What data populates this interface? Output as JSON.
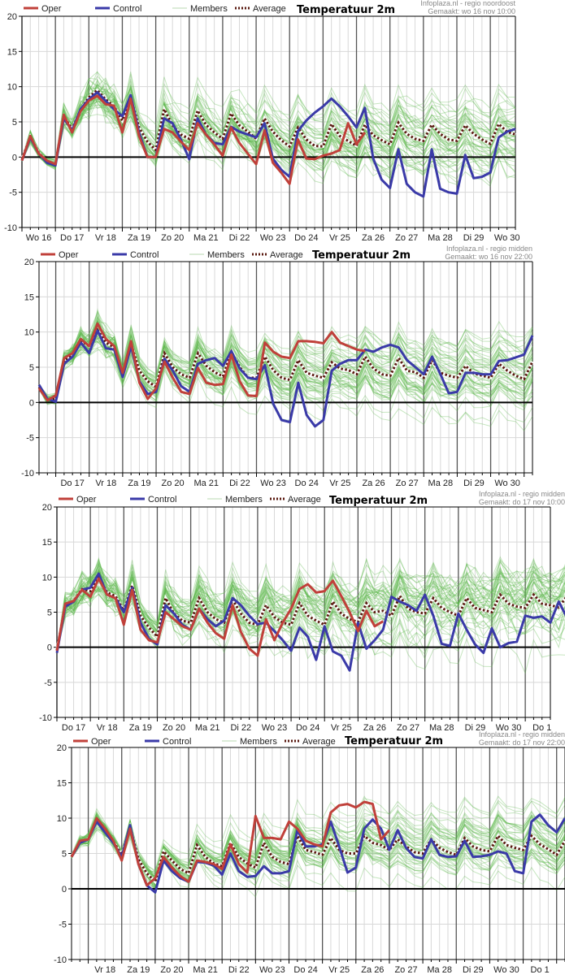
{
  "legend": {
    "oper": "Oper",
    "control": "Control",
    "members": "Members",
    "average": "Average"
  },
  "colors": {
    "oper": "#c0403a",
    "control": "#3a3aa8",
    "members": "#5cb84a",
    "average": "#5a1a10",
    "zero_line": "#000000",
    "grid_major": "#555555",
    "grid_minor": "#d8d8d8"
  },
  "chart_data": [
    {
      "type": "line",
      "title": "Temperatuur 2m",
      "credit_line1": "Infoplaza.nl - regio noordoost",
      "credit_line2": "Gemaakt: wo 16 nov 10:00",
      "ylim": [
        -10,
        20
      ],
      "yticks": [
        "20",
        "15",
        "10",
        "5",
        "0",
        "-5",
        "-10"
      ],
      "ytick_values": [
        20,
        15,
        10,
        5,
        0,
        -5,
        -10
      ],
      "xlabels": [
        "Wo 16",
        "Do 17",
        "Vr 18",
        "Za 19",
        "Zo 20",
        "Ma 21",
        "Di 22",
        "Wo 23",
        "Do 24",
        "Vr 25",
        "Za 26",
        "Zo 27",
        "Ma 28",
        "Di 29",
        "Wo 30"
      ],
      "steps_per_day": 4,
      "start_offset_steps": 0,
      "total_steps": 59,
      "series": [
        {
          "name": "Oper",
          "values": [
            -0.5,
            3,
            0.5,
            -0.5,
            -1,
            6,
            3.5,
            6.5,
            8,
            8.7,
            7.5,
            7.3,
            3.5,
            8.3,
            3,
            0,
            0,
            4,
            3.5,
            2.2,
            1,
            4.8,
            3.2,
            1.8,
            0.2,
            4.2,
            2,
            0.5,
            -1,
            3.8,
            -0.8,
            -2.2,
            -3.8,
            2.5,
            -0.2,
            -0.3,
            0.2,
            0.5,
            1,
            4.8,
            1.8,
            3.5
          ]
        },
        {
          "name": "Control",
          "values": [
            -0.5,
            2.8,
            0.5,
            -0.8,
            -1.2,
            5.5,
            3.8,
            6.8,
            8.2,
            9.2,
            8,
            6.8,
            5.8,
            8.8,
            3.5,
            0,
            0,
            5.5,
            4.8,
            2.5,
            -0.3,
            5.5,
            3.2,
            2,
            1.8,
            4.3,
            3.6,
            3.2,
            2.8,
            4.8,
            -0.2,
            -1.8,
            -2.8,
            3.7,
            5.2,
            6.3,
            7.2,
            8.3,
            7.2,
            5.8,
            4.2,
            7,
            -0.2,
            -3.2,
            -4.4,
            1.1,
            -3.8,
            -5,
            -5.6,
            1.1,
            -4.5,
            -5,
            -5.2,
            0.3,
            -3,
            -2.8,
            -2.2,
            2.8,
            3.6,
            4
          ]
        },
        {
          "name": "Average",
          "values": [
            -0.3,
            2.9,
            0.6,
            -0.6,
            -1,
            5.8,
            4,
            6.7,
            8.5,
            9.5,
            8.2,
            7.2,
            5.2,
            8.5,
            4.2,
            2.2,
            1,
            6.8,
            4.5,
            3.2,
            2.6,
            6.6,
            4.6,
            3.5,
            2.6,
            6.2,
            4.5,
            3.6,
            2.6,
            5.5,
            3.6,
            2.4,
            1.5,
            4.2,
            2.5,
            1.6,
            1.5,
            4.7,
            3,
            2.3,
            1.6,
            4.6,
            3.1,
            2.4,
            1.8,
            4.9,
            3.3,
            2.6,
            2.3,
            4.6,
            3.3,
            2.5,
            2.3,
            4.5,
            3.3,
            2.5,
            1.9,
            4.7,
            3.6,
            3.2
          ]
        }
      ],
      "members_count": 50,
      "members_spread_growth": 0.75
    },
    {
      "type": "line",
      "title": "Temperatuur 2m",
      "credit_line1": "Infoplaza.nl - regio midden",
      "credit_line2": "Gemaakt: wo 16 nov 22:00",
      "ylim": [
        -10,
        20
      ],
      "yticks": [
        "20",
        "15",
        "10",
        "5",
        "0",
        "-5",
        "-10"
      ],
      "ytick_values": [
        20,
        15,
        10,
        5,
        0,
        -5,
        -10
      ],
      "xlabels": [
        "Do 17",
        "Vr 18",
        "Za 19",
        "Zo 20",
        "Ma 21",
        "Di 22",
        "Wo 23",
        "Do 24",
        "Vr 25",
        "Za 26",
        "Zo 27",
        "Ma 28",
        "Di 29",
        "Wo 30"
      ],
      "steps_per_day": 4,
      "start_offset_steps": 2,
      "total_steps": 59,
      "series": [
        {
          "name": "Oper",
          "values": [
            2,
            0.3,
            1,
            6.3,
            7,
            9,
            8,
            11.2,
            9,
            8,
            4.2,
            8.7,
            2.8,
            0.5,
            2,
            5.8,
            3.5,
            1.5,
            1.2,
            4.9,
            2.8,
            2.5,
            2.6,
            6.8,
            3,
            1,
            0.9,
            8.5,
            7.2,
            6.5,
            6.3,
            8.7,
            8.7,
            8.6,
            8.4,
            10,
            8.5,
            8,
            7.5,
            7.3
          ]
        },
        {
          "name": "Control",
          "values": [
            2.5,
            0.5,
            0.1,
            5.5,
            6.5,
            8.5,
            7,
            10.2,
            7.7,
            7.5,
            3.6,
            8,
            3,
            1.2,
            1.5,
            6.2,
            4.5,
            2.3,
            1.5,
            5.5,
            6,
            6.3,
            5.2,
            7.3,
            4.8,
            3.5,
            3.3,
            5.3,
            -0.2,
            -2.5,
            -2.8,
            2.8,
            -1.8,
            -3.4,
            -2.5,
            4.5,
            5.5,
            6,
            6,
            7.5,
            7.2,
            7.8,
            8.2,
            7.8,
            6,
            5,
            4,
            6.5,
            4,
            1.3,
            1.5,
            4.2,
            4.2,
            4,
            4,
            5.9,
            6,
            6.4,
            6.8,
            9.5
          ]
        },
        {
          "name": "Average",
          "values": [
            2.2,
            0.4,
            0.5,
            6,
            6.8,
            8.8,
            8,
            10.3,
            8.5,
            7.8,
            4,
            8.3,
            4.5,
            3,
            2.2,
            7,
            5,
            4,
            3.5,
            7,
            5.2,
            4.3,
            3.7,
            7.2,
            5,
            3.5,
            3.5,
            6.5,
            4.6,
            3.5,
            3.2,
            6,
            4.2,
            3.8,
            3.5,
            5.7,
            4.8,
            4.6,
            4,
            6.5,
            4.8,
            4,
            3.8,
            6.3,
            4.5,
            4.3,
            3.5,
            6,
            4.2,
            3.8,
            3.5,
            5.2,
            4.1,
            3.8,
            3.5,
            5.5,
            4.5,
            3.8,
            3.3,
            5.8
          ]
        }
      ],
      "members_count": 50,
      "members_spread_growth": 0.7
    },
    {
      "type": "line",
      "title": "Temperatuur 2m",
      "credit_line1": "Infoplaza.nl - regio midden",
      "credit_line2": "Gemaakt: do 17 nov 10:00",
      "ylim": [
        -10,
        20
      ],
      "yticks": [
        "20",
        "15",
        "10",
        "5",
        "0",
        "-5",
        "-10"
      ],
      "ytick_values": [
        20,
        15,
        10,
        5,
        0,
        -5,
        -10
      ],
      "xlabels": [
        "Do 17",
        "Vr 18",
        "Za 19",
        "Zo 20",
        "Ma 21",
        "Di 22",
        "Wo 23",
        "Do 24",
        "Vr 25",
        "Za 26",
        "Zo 27",
        "Ma 28",
        "Di 29",
        "Wo 30",
        "Do 1"
      ],
      "steps_per_day": 4,
      "start_offset_steps": 0,
      "total_steps": 59,
      "series": [
        {
          "name": "Oper",
          "values": [
            -0.5,
            6.2,
            6.6,
            8.2,
            7.2,
            9.8,
            7.5,
            7,
            3.2,
            8.2,
            2.5,
            1,
            0.7,
            5,
            4,
            3,
            2.5,
            5.5,
            3.5,
            2,
            1.2,
            6,
            2.2,
            -0.2,
            -1.2,
            4,
            1,
            3.5,
            5.5,
            8.3,
            9,
            7.8,
            8,
            9.5,
            7.3,
            5,
            2.3,
            5.2,
            3,
            3.7
          ]
        },
        {
          "name": "Control",
          "values": [
            -0.8,
            5.8,
            6.5,
            8.2,
            8.5,
            10.5,
            7.5,
            7,
            5,
            8.5,
            3.5,
            1.2,
            0.4,
            6,
            4.8,
            3.2,
            2.5,
            5.5,
            4,
            3,
            3.8,
            7,
            6,
            4.5,
            3.3,
            3.5,
            2.3,
            1,
            -0.5,
            2.8,
            1.5,
            -1.8,
            3,
            -0.6,
            -1.2,
            -3.3,
            3.5,
            -0.2,
            1,
            2.5,
            7.2,
            6.5,
            6,
            5.2,
            7.5,
            4.5,
            0.5,
            0.2,
            4.8,
            2.5,
            0.4,
            -0.8,
            2.7,
            0,
            0.6,
            0.8,
            4.5,
            4.2,
            4.4,
            3.5,
            6.5,
            4.2,
            2.7
          ]
        },
        {
          "name": "Average",
          "values": [
            -0.4,
            6,
            6.6,
            8.3,
            8,
            10,
            7.8,
            7.3,
            5.2,
            8.8,
            4.5,
            2.8,
            1.5,
            7,
            4.8,
            3.8,
            3.5,
            7,
            5,
            4,
            3.5,
            6.8,
            4.8,
            3.5,
            3.2,
            6,
            4.3,
            3.5,
            3.2,
            6.3,
            4.5,
            3.8,
            3.2,
            6.5,
            4.8,
            4,
            3.6,
            6.3,
            5,
            5.2,
            4.5,
            7.3,
            5.5,
            5,
            4.8,
            7,
            5.6,
            5,
            4.5,
            7,
            5.6,
            5.3,
            5,
            7.5,
            6.2,
            5.8,
            5.6,
            7.5,
            6.2,
            6,
            5.7,
            7.3,
            6.1,
            5.5
          ]
        }
      ],
      "members_count": 50,
      "members_spread_growth": 0.72
    },
    {
      "type": "line",
      "title": "Temperatuur 2m",
      "credit_line1": "Infoplaza.nl - regio midden",
      "credit_line2": "Gemaakt: do 17 nov 22:00",
      "ylim": [
        -10,
        20
      ],
      "yticks": [
        "20",
        "15",
        "10",
        "5",
        "0",
        "-5",
        "-10"
      ],
      "ytick_values": [
        20,
        15,
        10,
        5,
        0,
        -5,
        -10
      ],
      "xlabels": [
        "Vr 18",
        "Za 19",
        "Zo 20",
        "Ma 21",
        "Di 22",
        "Wo 23",
        "Do 24",
        "Vr 25",
        "Za 26",
        "Zo 27",
        "Ma 28",
        "Di 29",
        "Wo 30",
        "Do 1"
      ],
      "steps_per_day": 4,
      "start_offset_steps": 2,
      "total_steps": 59,
      "series": [
        {
          "name": "Oper",
          "values": [
            4.5,
            6.8,
            7,
            10,
            8.5,
            6.8,
            4,
            8.5,
            3.5,
            0.5,
            1.5,
            4.5,
            3,
            1.8,
            1,
            4,
            3.8,
            3.5,
            2.8,
            6.3,
            3.5,
            2.3,
            10.3,
            7.2,
            7.2,
            7,
            9.5,
            8.5,
            6.8,
            6.3,
            6,
            10.8,
            11.8,
            12,
            11.5,
            12.3,
            12,
            7,
            8.3
          ]
        },
        {
          "name": "Control",
          "values": [
            4.5,
            6.5,
            7,
            9.5,
            8,
            6.5,
            4.5,
            9,
            3.5,
            0.5,
            -0.5,
            4,
            2.5,
            1.5,
            1,
            3.8,
            3.7,
            3.3,
            2,
            5,
            2.5,
            1.7,
            1.8,
            3.2,
            2.2,
            2.2,
            2.5,
            8.3,
            6,
            6,
            6.3,
            9.5,
            6,
            2.3,
            3,
            8.5,
            9.8,
            8.5,
            5.5,
            8.3,
            5.8,
            4.5,
            4.3,
            7,
            4.8,
            4.5,
            4.6,
            6.8,
            4.5,
            4.6,
            4.8,
            5.3,
            5,
            2.5,
            2.2,
            9.5,
            10.5,
            9,
            8,
            10
          ]
        },
        {
          "name": "Average",
          "values": [
            4.6,
            6.7,
            7,
            9.6,
            8.2,
            6.7,
            4.8,
            8.7,
            4.2,
            2.2,
            1,
            5.3,
            4,
            2.8,
            2.2,
            6.2,
            4.5,
            3.6,
            3.2,
            6.5,
            4.5,
            3.6,
            3,
            6.5,
            4.5,
            3.8,
            3.5,
            7.5,
            5.5,
            5.2,
            4.8,
            7.2,
            5.5,
            5,
            5,
            7.5,
            6.5,
            6.2,
            5.5,
            7,
            6,
            5.2,
            5,
            7,
            5.8,
            5.2,
            4.8,
            7.2,
            6,
            5.5,
            5.3,
            7.5,
            6.2,
            5.8,
            5.5,
            7.5,
            6.3,
            5.6,
            4.8,
            6.8
          ]
        }
      ],
      "members_count": 50,
      "members_spread_growth": 0.72
    }
  ]
}
